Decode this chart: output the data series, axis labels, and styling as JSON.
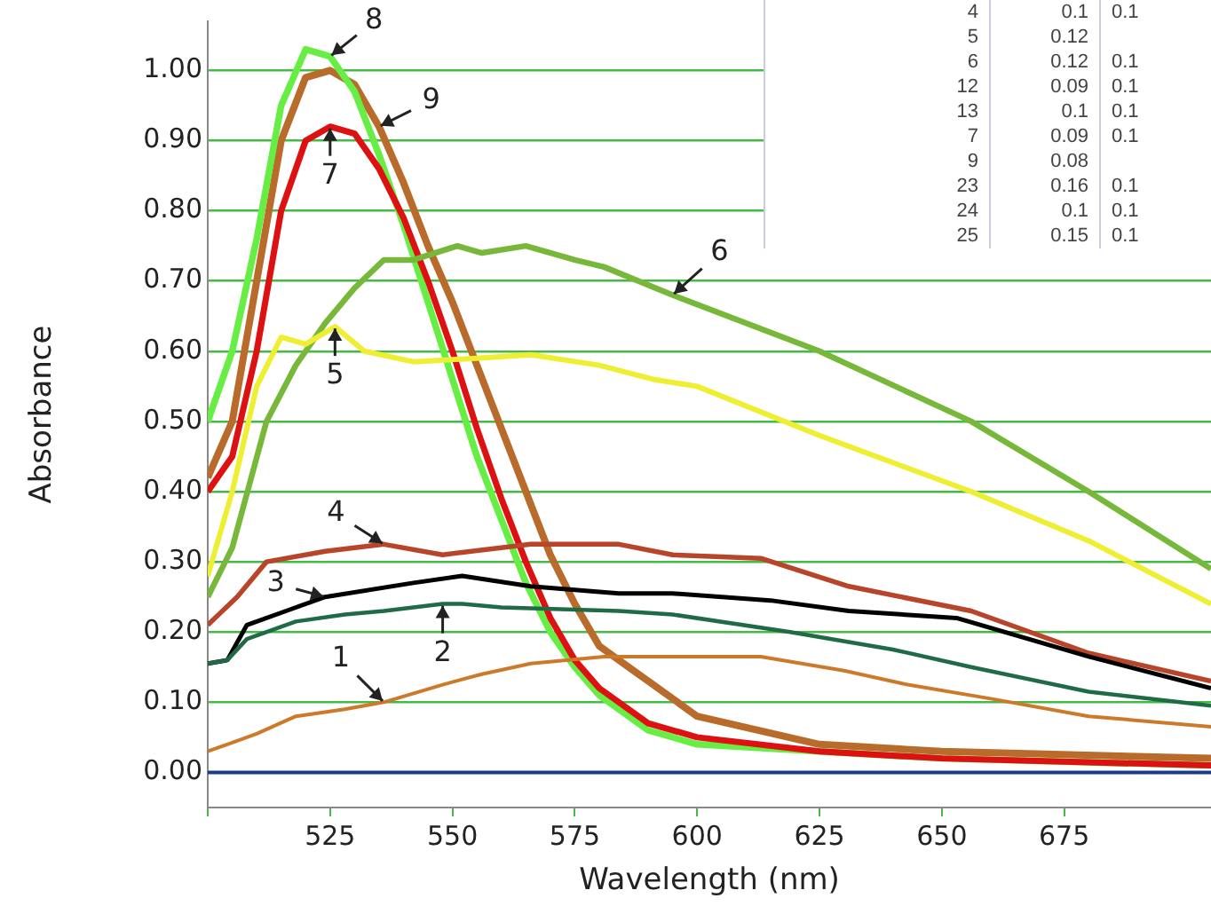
{
  "chart_data": {
    "type": "line",
    "xlabel": "Wavelength (nm)",
    "ylabel": "Absorbance",
    "xlim": [
      500,
      705
    ],
    "xticks": [
      {
        "value": 500,
        "label": null
      },
      525,
      550,
      575,
      600,
      625,
      650,
      675
    ],
    "ylim": [
      -0.05,
      1.07
    ],
    "yticks": [
      {
        "value": 0,
        "label": "0.00"
      },
      {
        "value": 0.1,
        "label": "0.10"
      },
      {
        "value": 0.2,
        "label": "0.20"
      },
      {
        "value": 0.3,
        "label": "0.30"
      },
      {
        "value": 0.4,
        "label": "0.40"
      },
      {
        "value": 0.5,
        "label": "0.50"
      },
      {
        "value": 0.6,
        "label": "0.60"
      },
      {
        "value": 0.7,
        "label": "0.70"
      },
      {
        "value": 0.8,
        "label": "0.80"
      },
      {
        "value": 0.9,
        "label": "0.90"
      },
      {
        "value": 1,
        "label": "1.00"
      }
    ],
    "grid": "y",
    "ref_lines": [
      {
        "axis": "y",
        "value": 0,
        "color": "#1a3a8a"
      }
    ],
    "legend": false,
    "marker": "none",
    "line_style": "solid",
    "series": [
      {
        "color": "#cc7a29",
        "x": [
          500,
          510,
          518,
          528,
          536,
          548,
          556,
          566,
          581,
          595,
          602,
          613,
          630,
          643,
          660,
          680,
          705
        ],
        "values": [
          0.03,
          0.055,
          0.08,
          0.09,
          0.1,
          0.125,
          0.14,
          0.155,
          0.165,
          0.165,
          0.165,
          0.165,
          0.145,
          0.125,
          0.105,
          0.08,
          0.065
        ]
      },
      {
        "color": "#1f6b45",
        "x": [
          500,
          504,
          508,
          518,
          528,
          536,
          548,
          552,
          560,
          584,
          595,
          619,
          640,
          656,
          680,
          705
        ],
        "values": [
          0.155,
          0.16,
          0.19,
          0.215,
          0.225,
          0.23,
          0.24,
          0.24,
          0.235,
          0.23,
          0.225,
          0.2,
          0.175,
          0.15,
          0.115,
          0.095
        ]
      },
      {
        "color": "#000000",
        "x": [
          500,
          504,
          508,
          516,
          524,
          542,
          552,
          566,
          584,
          595,
          615,
          631,
          653,
          680,
          705
        ],
        "values": [
          0.155,
          0.16,
          0.21,
          0.23,
          0.25,
          0.27,
          0.28,
          0.265,
          0.255,
          0.255,
          0.245,
          0.23,
          0.22,
          0.165,
          0.12
        ]
      },
      {
        "color": "#b8452a",
        "x": [
          500,
          506,
          512,
          524,
          536,
          548,
          566,
          584,
          595,
          613,
          631,
          656,
          680,
          705
        ],
        "values": [
          0.21,
          0.25,
          0.3,
          0.315,
          0.325,
          0.31,
          0.325,
          0.325,
          0.31,
          0.305,
          0.265,
          0.23,
          0.17,
          0.13
        ]
      },
      {
        "color": "#eeee33",
        "x": [
          500,
          505,
          510,
          515,
          520,
          526,
          532,
          542,
          555,
          566,
          580,
          591,
          600,
          625,
          656,
          680,
          705
        ],
        "values": [
          0.28,
          0.4,
          0.55,
          0.62,
          0.61,
          0.635,
          0.6,
          0.585,
          0.59,
          0.595,
          0.58,
          0.56,
          0.55,
          0.48,
          0.4,
          0.33,
          0.24
        ]
      },
      {
        "color": "#77b83a",
        "x": [
          500,
          505,
          512,
          518,
          524,
          530,
          536,
          542,
          551,
          556,
          565,
          575,
          581,
          595,
          625,
          656,
          680,
          705
        ],
        "values": [
          0.25,
          0.32,
          0.5,
          0.58,
          0.64,
          0.69,
          0.73,
          0.73,
          0.75,
          0.74,
          0.75,
          0.73,
          0.72,
          0.68,
          0.6,
          0.5,
          0.4,
          0.29
        ]
      },
      {
        "color": "#dd1111",
        "x": [
          500,
          505,
          510,
          515,
          520,
          525,
          530,
          535,
          540,
          545,
          550,
          555,
          560,
          565,
          570,
          575,
          580,
          590,
          600,
          625,
          650,
          705
        ],
        "values": [
          0.4,
          0.45,
          0.6,
          0.8,
          0.9,
          0.92,
          0.91,
          0.86,
          0.79,
          0.7,
          0.6,
          0.49,
          0.39,
          0.3,
          0.22,
          0.16,
          0.12,
          0.07,
          0.05,
          0.03,
          0.02,
          0.01
        ]
      },
      {
        "color": "#66ee44",
        "x": [
          500,
          505,
          510,
          515,
          520,
          525,
          530,
          535,
          540,
          545,
          550,
          555,
          560,
          565,
          570,
          575,
          580,
          590,
          600,
          625,
          650,
          705
        ],
        "values": [
          0.5,
          0.6,
          0.76,
          0.95,
          1.03,
          1.02,
          0.97,
          0.88,
          0.78,
          0.67,
          0.56,
          0.45,
          0.36,
          0.27,
          0.2,
          0.15,
          0.11,
          0.06,
          0.04,
          0.03,
          0.02,
          0.01
        ]
      },
      {
        "color": "#b86b2a",
        "x": [
          500,
          505,
          510,
          515,
          520,
          525,
          530,
          535,
          540,
          545,
          550,
          555,
          560,
          565,
          570,
          575,
          580,
          590,
          600,
          625,
          650,
          705
        ],
        "values": [
          0.42,
          0.5,
          0.7,
          0.9,
          0.99,
          1.0,
          0.98,
          0.92,
          0.84,
          0.75,
          0.67,
          0.58,
          0.49,
          0.4,
          0.31,
          0.24,
          0.18,
          0.13,
          0.08,
          0.04,
          0.03,
          0.02
        ]
      }
    ],
    "annotations": [
      {
        "text": "1",
        "x": 536,
        "y": 0.1
      },
      {
        "text": "2",
        "x": 548,
        "y": 0.24
      },
      {
        "text": "3",
        "x": 524,
        "y": 0.25
      },
      {
        "text": "4",
        "x": 536,
        "y": 0.325
      },
      {
        "text": "5",
        "x": 526,
        "y": 0.635
      },
      {
        "text": "6",
        "x": 595,
        "y": 0.68
      },
      {
        "text": "7",
        "x": 525,
        "y": 0.92
      },
      {
        "text": "8",
        "x": 525,
        "y": 1.02
      },
      {
        "text": "9",
        "x": 535,
        "y": 0.92
      },
      "4 0.1 0.1",
      "5 0.12",
      "6 0.12 0.1",
      "12 0.09 0.1",
      "13 0.1 0.1",
      "7 0.09 0.1",
      "9 0.08",
      "23 0.16 0.1",
      "24 0.1 0.1",
      "25 0.15 0.1"
    ]
  }
}
